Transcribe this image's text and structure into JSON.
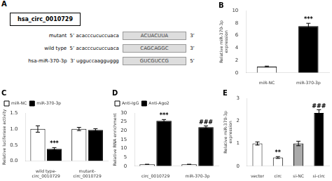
{
  "chart_data": [
    {
      "type": "diagram",
      "title": "A",
      "annotations": [
        {
          "text": "hsa_circ_0010729"
        },
        {
          "text": "mutant  5’ acacccucuccuaca",
          "highlight": "ACUACUUA",
          "end": "3’"
        },
        {
          "text": "wild type  5’ acacccucuccuaca",
          "highlight": "CAGCAGGC",
          "end": "3’"
        },
        {
          "text": "hsa-miR-370-3p  3’ ugguccaagguggg",
          "highlight": "GUCGUCCG",
          "end": "5’"
        }
      ]
    },
    {
      "type": "bar",
      "title": "B",
      "categories": [
        "miR-NC",
        "miR-370-3p"
      ],
      "values": [
        1.0,
        7.5
      ],
      "errors": [
        0.08,
        0.45
      ],
      "colors": [
        "white",
        "black"
      ],
      "ylabel": "Relative miR-370-3p\nexpression",
      "ylim": [
        0,
        10
      ],
      "yticks": [
        0,
        2,
        4,
        6,
        8,
        10
      ],
      "grid": false,
      "annotations": [
        {
          "text": "***",
          "category": "miR-370-3p"
        }
      ]
    },
    {
      "type": "bar",
      "title": "C",
      "categories": [
        "wild type-\ncirc_0010729",
        "mutant-\ncirc_0010729"
      ],
      "series": [
        {
          "name": "miR-NC",
          "color": "white",
          "values": [
            1.0,
            1.0
          ],
          "errors": [
            0.1,
            0.05
          ]
        },
        {
          "name": "miR-370-3p",
          "color": "black",
          "values": [
            0.38,
            0.97
          ],
          "errors": [
            0.04,
            0.04
          ]
        }
      ],
      "ylabel": "Relative luciferase activity",
      "ylim": [
        0,
        1.5
      ],
      "yticks": [
        {
          "value": 0,
          "label": "0.0"
        },
        0.5,
        {
          "value": 1.0,
          "label": "1.0"
        },
        1.5
      ],
      "grid": false,
      "legend": "upper left",
      "annotations": [
        {
          "text": "***",
          "category": "wild type-\ncirc_0010729",
          "series": "miR-370-3p"
        }
      ]
    },
    {
      "type": "bar",
      "title": "D",
      "categories": [
        "circ_0010729",
        "miR-370-3p"
      ],
      "series": [
        {
          "name": "Anti-IgG",
          "color": "white",
          "values": [
            1.0,
            1.0
          ],
          "errors": [
            0.06,
            0.06
          ]
        },
        {
          "name": "Anti-Ago2",
          "color": "black",
          "values": [
            25.5,
            22.0
          ],
          "errors": [
            0.8,
            0.7
          ]
        }
      ],
      "ylabel": "Relative RNA enrichment",
      "ylim": [
        0,
        30
      ],
      "yticks": [
        0,
        5,
        10,
        15,
        20,
        25,
        30
      ],
      "grid": false,
      "legend": "upper left",
      "annotations": [
        {
          "text": "***",
          "category": "circ_0010729",
          "series": "Anti-Ago2"
        },
        {
          "text": "###",
          "category": "miR-370-3p",
          "series": "Anti-Ago2"
        }
      ]
    },
    {
      "type": "bar",
      "title": "E",
      "categories": [
        "vector",
        "circ",
        "si-NC",
        "si-circ"
      ],
      "values": [
        1.0,
        0.38,
        1.0,
        2.35
      ],
      "errors": [
        0.07,
        0.04,
        0.1,
        0.14
      ],
      "colors": [
        "white",
        "white",
        "#aaaaaa",
        "black"
      ],
      "ylabel": "Relative miR-370-3p\nexpression",
      "ylim": [
        0,
        3
      ],
      "yticks": [
        0,
        1,
        2,
        3
      ],
      "grid": false,
      "annotations": [
        {
          "text": "**",
          "category": "circ"
        },
        {
          "text": "###",
          "category": "si-circ"
        }
      ]
    }
  ]
}
